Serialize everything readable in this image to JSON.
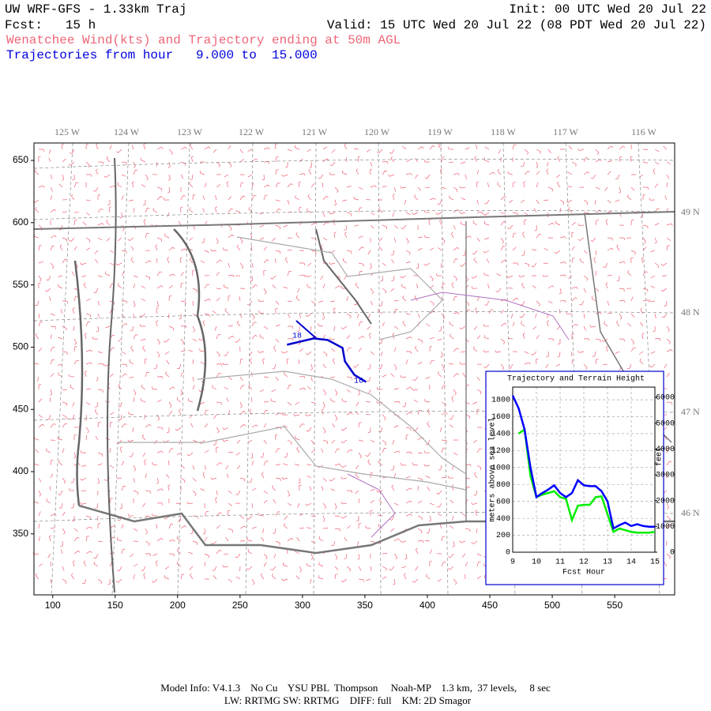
{
  "header": {
    "title": "UW WRF-GFS - 1.33km Traj",
    "init": "Init: 00 UTC Wed 20 Jul 22",
    "forecast": "Fcst:   15 h",
    "valid": "Valid: 15 UTC Wed 20 Jul 22 (08 PDT Wed 20 Jul 22)",
    "field": "Wenatchee Wind(kts) and Trajectory ending at 50m AGL",
    "trajectories": "Trajectories from hour   9.000 to  15.000"
  },
  "map": {
    "xlim": [
      85,
      598
    ],
    "ylim": [
      301,
      664
    ],
    "xticks": [
      100,
      150,
      200,
      250,
      300,
      350,
      400,
      450,
      500,
      550
    ],
    "yticks": [
      350,
      400,
      450,
      500,
      550,
      600,
      650
    ],
    "lon_labels": [
      "125 W",
      "124 W",
      "123 W",
      "122 W",
      "121 W",
      "120 W",
      "119 W",
      "118 W",
      "117 W",
      "116 W"
    ],
    "lat_labels": [
      "49 N",
      "48 N",
      "47 N",
      "46 N"
    ],
    "trajectory": {
      "color": "#0000cc",
      "x": [
        287.6,
        308.9,
        320.2,
        332.1,
        334.0,
        341.5,
        350.9
      ],
      "y": [
        501.9,
        507.0,
        505.7,
        499.4,
        488.6,
        477.8,
        472.1
      ]
    },
    "trajectory_labels": [
      "18",
      "16"
    ]
  },
  "chart_data": {
    "type": "line",
    "title": "Trajectory and Terrain Height",
    "xlabel": "Fcst Hour",
    "ylabel": "meters above sea level",
    "y2label": "feet",
    "x": [
      9,
      9.25,
      9.5,
      9.75,
      10,
      10.25,
      10.5,
      10.75,
      11,
      11.25,
      11.5,
      11.75,
      12,
      12.25,
      12.5,
      12.75,
      13,
      13.25,
      13.5,
      13.75,
      14,
      14.25,
      14.5,
      14.75,
      15
    ],
    "xlim": [
      9,
      15
    ],
    "xticks": [
      9,
      10,
      11,
      12,
      13,
      14,
      15
    ],
    "ylim": [
      0,
      1950
    ],
    "yticks": [
      0,
      200,
      400,
      600,
      800,
      1000,
      1200,
      1400,
      1600,
      1800
    ],
    "y2lim": [
      0,
      6398
    ],
    "y2ticks": [
      0,
      1000,
      2000,
      3000,
      4000,
      5000,
      6000
    ],
    "grid": true,
    "series": [
      {
        "name": "Trajectory",
        "color": "#0000ff",
        "values": [
          1850,
          1700,
          1450,
          1000,
          650,
          700,
          740,
          790,
          700,
          650,
          700,
          850,
          790,
          780,
          780,
          720,
          600,
          280,
          320,
          350,
          310,
          330,
          310,
          300,
          300
        ]
      },
      {
        "name": "Terrain",
        "color": "#00ee00",
        "values": [
          null,
          1400,
          1450,
          900,
          650,
          680,
          700,
          720,
          650,
          630,
          380,
          550,
          560,
          560,
          650,
          660,
          450,
          240,
          280,
          260,
          240,
          230,
          230,
          230,
          240
        ]
      }
    ]
  },
  "footer": {
    "line1": "Model Info: V4.1.3    No Cu    YSU PBL  Thompson     Noah-MP    1.3 km,  37 levels,     8 sec",
    "line2": "LW: RRTMG SW: RRTMG    DIFF: full    KM: 2D Smagor"
  }
}
